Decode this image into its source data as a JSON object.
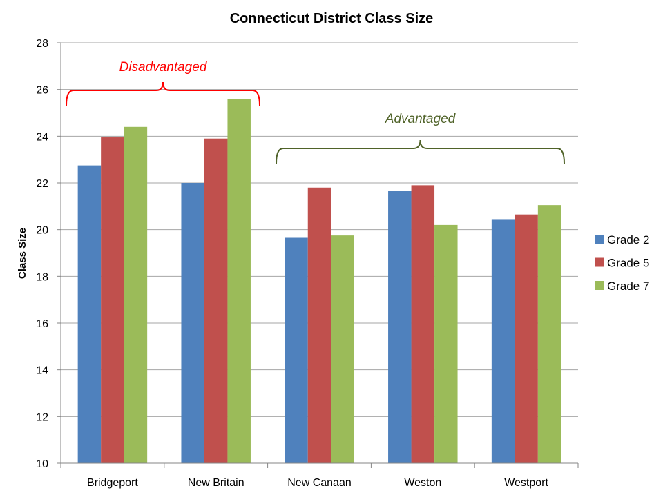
{
  "chart_data": {
    "type": "bar",
    "title": "Connecticut District Class Size",
    "xlabel": "",
    "ylabel": "Class Size",
    "ylim": [
      10,
      28
    ],
    "yticks": [
      10,
      12,
      14,
      16,
      18,
      20,
      22,
      24,
      26,
      28
    ],
    "grid": true,
    "legend_position": "right",
    "categories": [
      "Bridgeport",
      "New Britain",
      "New Canaan",
      "Weston",
      "Westport"
    ],
    "series": [
      {
        "name": "Grade 2",
        "color": "#4f81bd",
        "values": [
          22.75,
          22.0,
          19.65,
          21.65,
          20.45
        ]
      },
      {
        "name": "Grade 5",
        "color": "#c0504d",
        "values": [
          23.95,
          23.9,
          21.8,
          21.9,
          20.65
        ]
      },
      {
        "name": "Grade 7",
        "color": "#9bbb59",
        "values": [
          24.4,
          25.6,
          19.75,
          20.2,
          21.05
        ]
      }
    ],
    "annotations": [
      {
        "label": "Disadvantaged",
        "color": "#ff0000",
        "categories": [
          "Bridgeport",
          "New Britain"
        ]
      },
      {
        "label": "Advantaged",
        "color": "#4f6228",
        "categories": [
          "New Canaan",
          "Weston",
          "Westport"
        ]
      }
    ]
  }
}
